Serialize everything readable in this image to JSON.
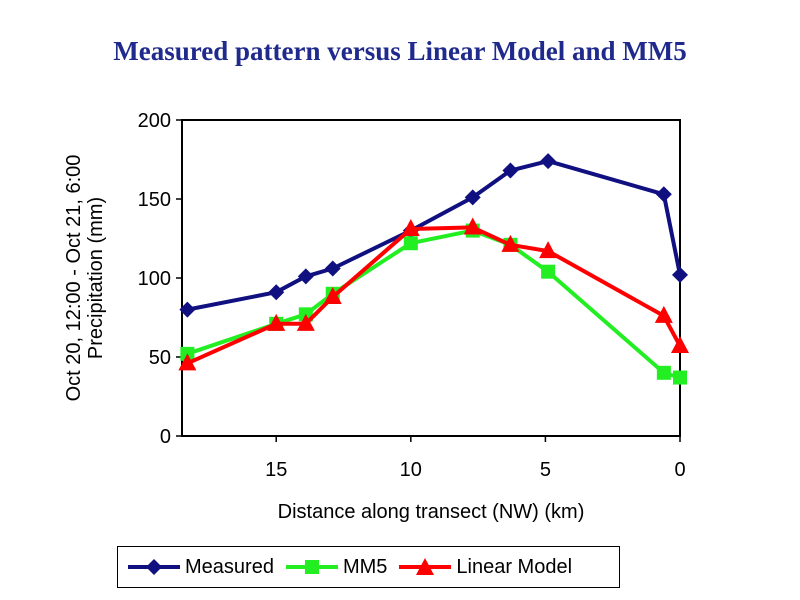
{
  "slide": {
    "title": "Measured pattern versus Linear Model and MM5"
  },
  "colors": {
    "measured": "#101080",
    "mm5": "#22ee22",
    "linear": "#ff0000"
  },
  "chart_data": {
    "type": "line",
    "title": "Measured pattern versus Linear Model and MM5",
    "xlabel": "Distance along transect (NW) (km)",
    "ylabel": "Oct 20, 12:00 - Oct 21, 6:00 Precipitation (mm)",
    "ylabel_lines": [
      "Oct 20, 12:00 - Oct 21, 6:00",
      "Precipitation (mm)"
    ],
    "xlim": [
      18.5,
      0
    ],
    "ylim": [
      0,
      200
    ],
    "x_ticks": [
      15,
      10,
      5,
      0
    ],
    "y_ticks": [
      0,
      50,
      100,
      150,
      200
    ],
    "grid": false,
    "legend_position": "bottom",
    "series": [
      {
        "name": "Measured",
        "marker": "diamond",
        "color": "#101080",
        "points": [
          [
            18.3,
            80
          ],
          [
            15.0,
            91
          ],
          [
            13.9,
            101
          ],
          [
            12.9,
            106
          ],
          [
            10.0,
            130
          ],
          [
            7.7,
            151
          ],
          [
            6.3,
            168
          ],
          [
            4.9,
            174
          ],
          [
            0.6,
            153
          ],
          [
            0.0,
            102
          ]
        ]
      },
      {
        "name": "MM5",
        "marker": "square",
        "color": "#22ee22",
        "points": [
          [
            18.3,
            52
          ],
          [
            15.0,
            71
          ],
          [
            13.9,
            77
          ],
          [
            12.9,
            90
          ],
          [
            10.0,
            122
          ],
          [
            7.7,
            130
          ],
          [
            6.3,
            121
          ],
          [
            4.9,
            104
          ],
          [
            0.6,
            40
          ],
          [
            0.0,
            37
          ]
        ]
      },
      {
        "name": "Linear Model",
        "marker": "triangle",
        "color": "#ff0000",
        "points": [
          [
            18.3,
            46
          ],
          [
            15.0,
            71
          ],
          [
            13.9,
            71
          ],
          [
            12.9,
            88
          ],
          [
            10.0,
            131
          ],
          [
            7.7,
            132
          ],
          [
            6.3,
            121
          ],
          [
            4.9,
            117
          ],
          [
            0.6,
            76
          ],
          [
            0.0,
            57
          ]
        ]
      }
    ]
  }
}
